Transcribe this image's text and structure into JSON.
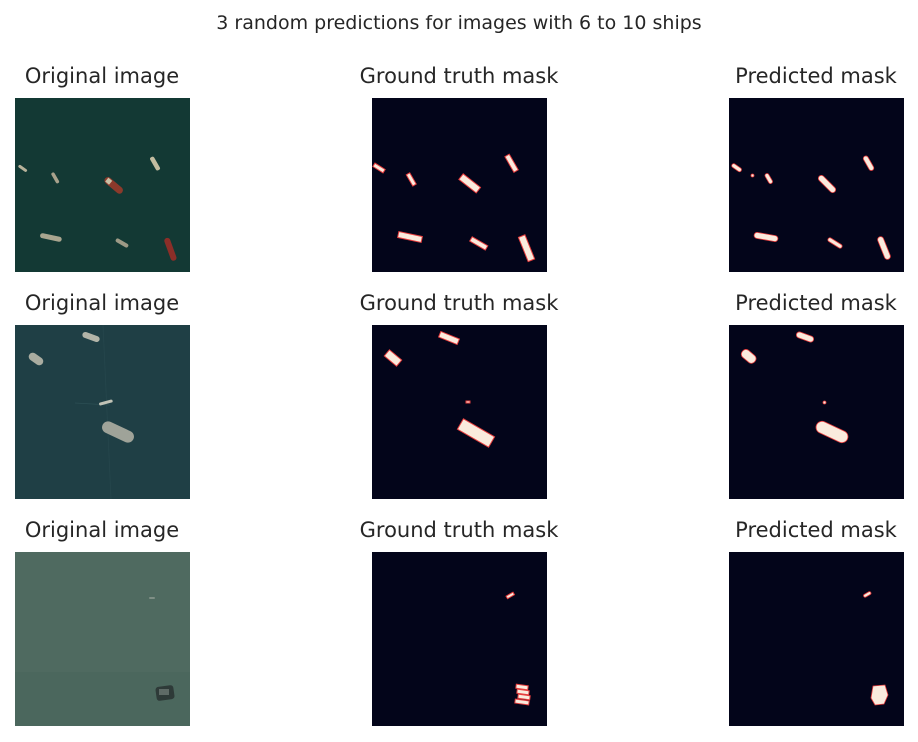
{
  "figure": {
    "title": "3 random predictions for images with 6 to 10 ships",
    "column_titles": [
      "Original image",
      "Ground truth mask",
      "Predicted mask"
    ]
  },
  "colors": {
    "background": "#ffffff",
    "text": "#262626",
    "mask_background": "#03051a",
    "mask_foreground": "#faebdd",
    "mask_edge": "#e83f3f",
    "sea_row1": "#163c38",
    "sea_row2": "#1f3f45",
    "sea_row3": "#4f6a60"
  },
  "rows": [
    {
      "titles": {
        "original": "Original image",
        "ground_truth": "Ground truth mask",
        "predicted": "Predicted mask"
      }
    },
    {
      "titles": {
        "original": "Original image",
        "ground_truth": "Ground truth mask",
        "predicted": "Predicted mask"
      }
    },
    {
      "titles": {
        "original": "Original image",
        "ground_truth": "Ground truth mask",
        "predicted": "Predicted mask"
      }
    }
  ]
}
